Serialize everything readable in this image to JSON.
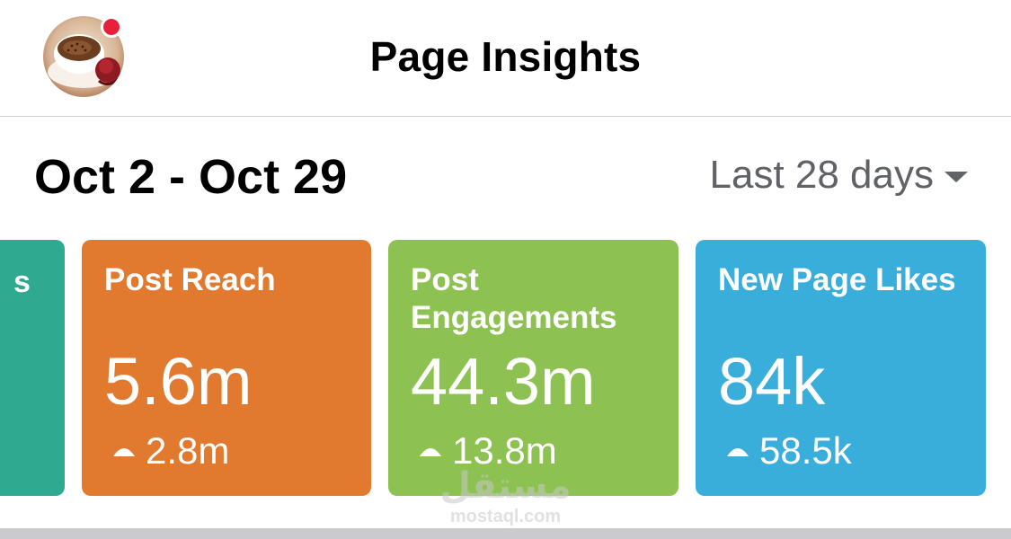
{
  "header": {
    "title": "Page Insights"
  },
  "range": {
    "dates": "Oct 2 - Oct 29",
    "period": "Last 28 days"
  },
  "cards": {
    "partial_fragment": "s",
    "post_reach": {
      "title": "Post Reach",
      "value": "5.6m",
      "delta": "2.8m"
    },
    "post_engagements": {
      "title": "Post Engagements",
      "value": "44.3m",
      "delta": "13.8m"
    },
    "new_page_likes": {
      "title": "New Page Likes",
      "value": "84k",
      "delta": "58.5k"
    }
  },
  "colors": {
    "partial_card": "#2fa98f",
    "post_reach": "#e17a2e",
    "post_engagements": "#8dc151",
    "new_page_likes": "#3aaedb",
    "notification_dot": "#e8203a"
  },
  "watermark": {
    "arabic": "مستقل",
    "latin": "mostaql.com"
  }
}
